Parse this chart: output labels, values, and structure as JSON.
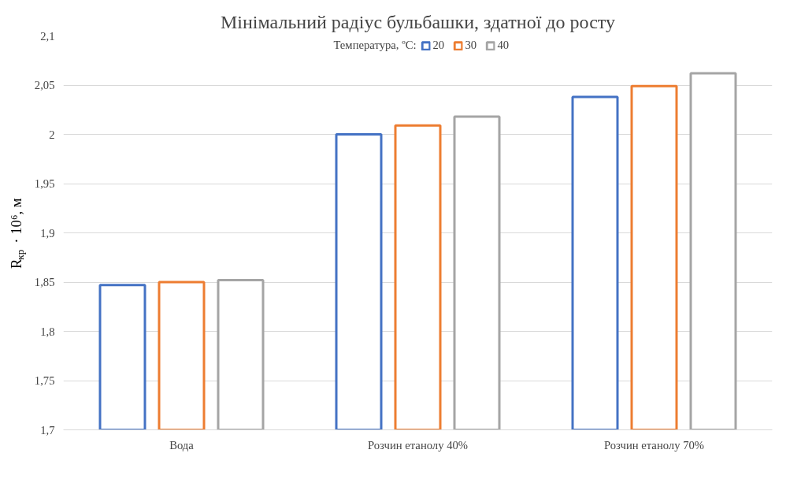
{
  "chart_data": {
    "type": "bar",
    "title": "Мінімальний радіус бульбашки, здатної до росту",
    "ylabel": "R$_{кр}$ · 10⁶, м",
    "legend_title": "Температура, ºС:",
    "categories": [
      "Вода",
      "Розчин етанолу 40%",
      "Розчин етанолу 70%"
    ],
    "series": [
      {
        "name": "20",
        "color": "#4472c4",
        "values": [
          1.847,
          2.0,
          2.038
        ]
      },
      {
        "name": "30",
        "color": "#ed7d31",
        "values": [
          1.85,
          2.009,
          2.049
        ]
      },
      {
        "name": "40",
        "color": "#a5a5a5",
        "values": [
          1.852,
          2.018,
          2.062
        ]
      }
    ],
    "ylim": [
      1.7,
      2.1
    ],
    "yticks": [
      {
        "value": 1.7,
        "label": "1,7"
      },
      {
        "value": 1.75,
        "label": "1,75"
      },
      {
        "value": 1.8,
        "label": "1,8"
      },
      {
        "value": 1.85,
        "label": "1,85"
      },
      {
        "value": 1.9,
        "label": "1,9"
      },
      {
        "value": 1.95,
        "label": "1,95"
      },
      2,
      {
        "value": 2.05,
        "label": "2,05"
      },
      {
        "value": 2.1,
        "label": "2,1"
      }
    ],
    "grid": "y",
    "legend": "top"
  }
}
